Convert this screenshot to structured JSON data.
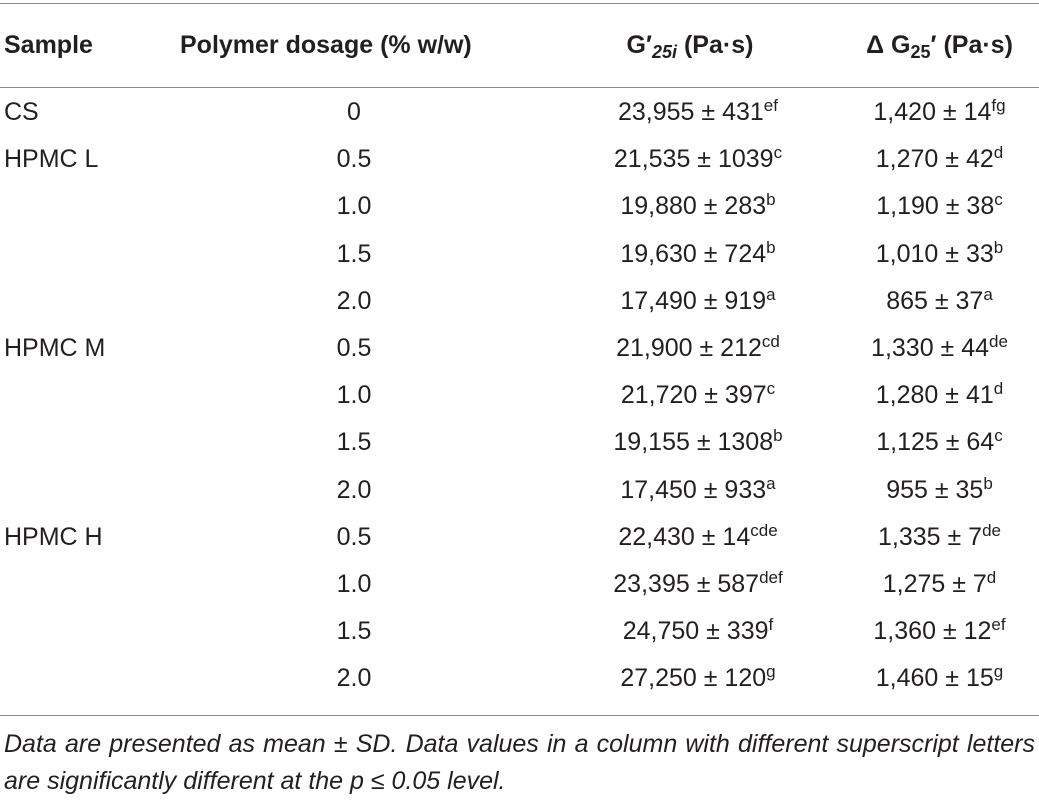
{
  "table": {
    "headers": {
      "sample": "Sample",
      "dosage": "Polymer dosage (% w/w)",
      "g25i_prefix": "G′",
      "g25i_sub": "25i",
      "g25i_unit": " (Pa·s)",
      "dg25_prefix": "Δ G",
      "dg25_sub": "25",
      "dg25_unit": "′ (Pa·s)"
    },
    "rows": [
      {
        "sample": "CS",
        "dosage": "0",
        "g25i": "23,955 ± 431",
        "g25i_sup": "ef",
        "dg25": "1,420 ± 14",
        "dg25_sup": "fg"
      },
      {
        "sample": "HPMC L",
        "dosage": "0.5",
        "g25i": "21,535 ± 1039",
        "g25i_sup": "c",
        "dg25": "1,270 ± 42",
        "dg25_sup": "d"
      },
      {
        "sample": "",
        "dosage": "1.0",
        "g25i": "19,880 ± 283",
        "g25i_sup": "b",
        "dg25": "1,190 ± 38",
        "dg25_sup": "c"
      },
      {
        "sample": "",
        "dosage": "1.5",
        "g25i": "19,630 ± 724",
        "g25i_sup": "b",
        "dg25": "1,010 ± 33",
        "dg25_sup": "b"
      },
      {
        "sample": "",
        "dosage": "2.0",
        "g25i": "17,490 ± 919",
        "g25i_sup": "a",
        "dg25": "865 ± 37",
        "dg25_sup": "a"
      },
      {
        "sample": "HPMC M",
        "dosage": "0.5",
        "g25i": "21,900 ± 212",
        "g25i_sup": "cd",
        "dg25": "1,330 ± 44",
        "dg25_sup": "de"
      },
      {
        "sample": "",
        "dosage": "1.0",
        "g25i": "21,720 ± 397",
        "g25i_sup": "c",
        "dg25": "1,280 ± 41",
        "dg25_sup": "d"
      },
      {
        "sample": "",
        "dosage": "1.5",
        "g25i": "19,155 ± 1308",
        "g25i_sup": "b",
        "dg25": "1,125 ± 64",
        "dg25_sup": "c"
      },
      {
        "sample": "",
        "dosage": "2.0",
        "g25i": "17,450 ± 933",
        "g25i_sup": "a",
        "dg25": "955 ± 35",
        "dg25_sup": "b"
      },
      {
        "sample": "HPMC H",
        "dosage": "0.5",
        "g25i": "22,430 ± 14",
        "g25i_sup": "cde",
        "dg25": "1,335 ± 7",
        "dg25_sup": "de"
      },
      {
        "sample": "",
        "dosage": "1.0",
        "g25i": "23,395 ± 587",
        "g25i_sup": "def",
        "dg25": "1,275 ± 7",
        "dg25_sup": "d"
      },
      {
        "sample": "",
        "dosage": "1.5",
        "g25i": "24,750 ± 339",
        "g25i_sup": "f",
        "dg25": "1,360 ± 12",
        "dg25_sup": "ef"
      },
      {
        "sample": "",
        "dosage": "2.0",
        "g25i": "27,250 ± 120",
        "g25i_sup": "g",
        "dg25": "1,460 ± 15",
        "dg25_sup": "g"
      }
    ],
    "footnote": "Data are presented as mean ± SD. Data values in a column with different superscript letters are significantly different at the p ≤ 0.05 level."
  }
}
